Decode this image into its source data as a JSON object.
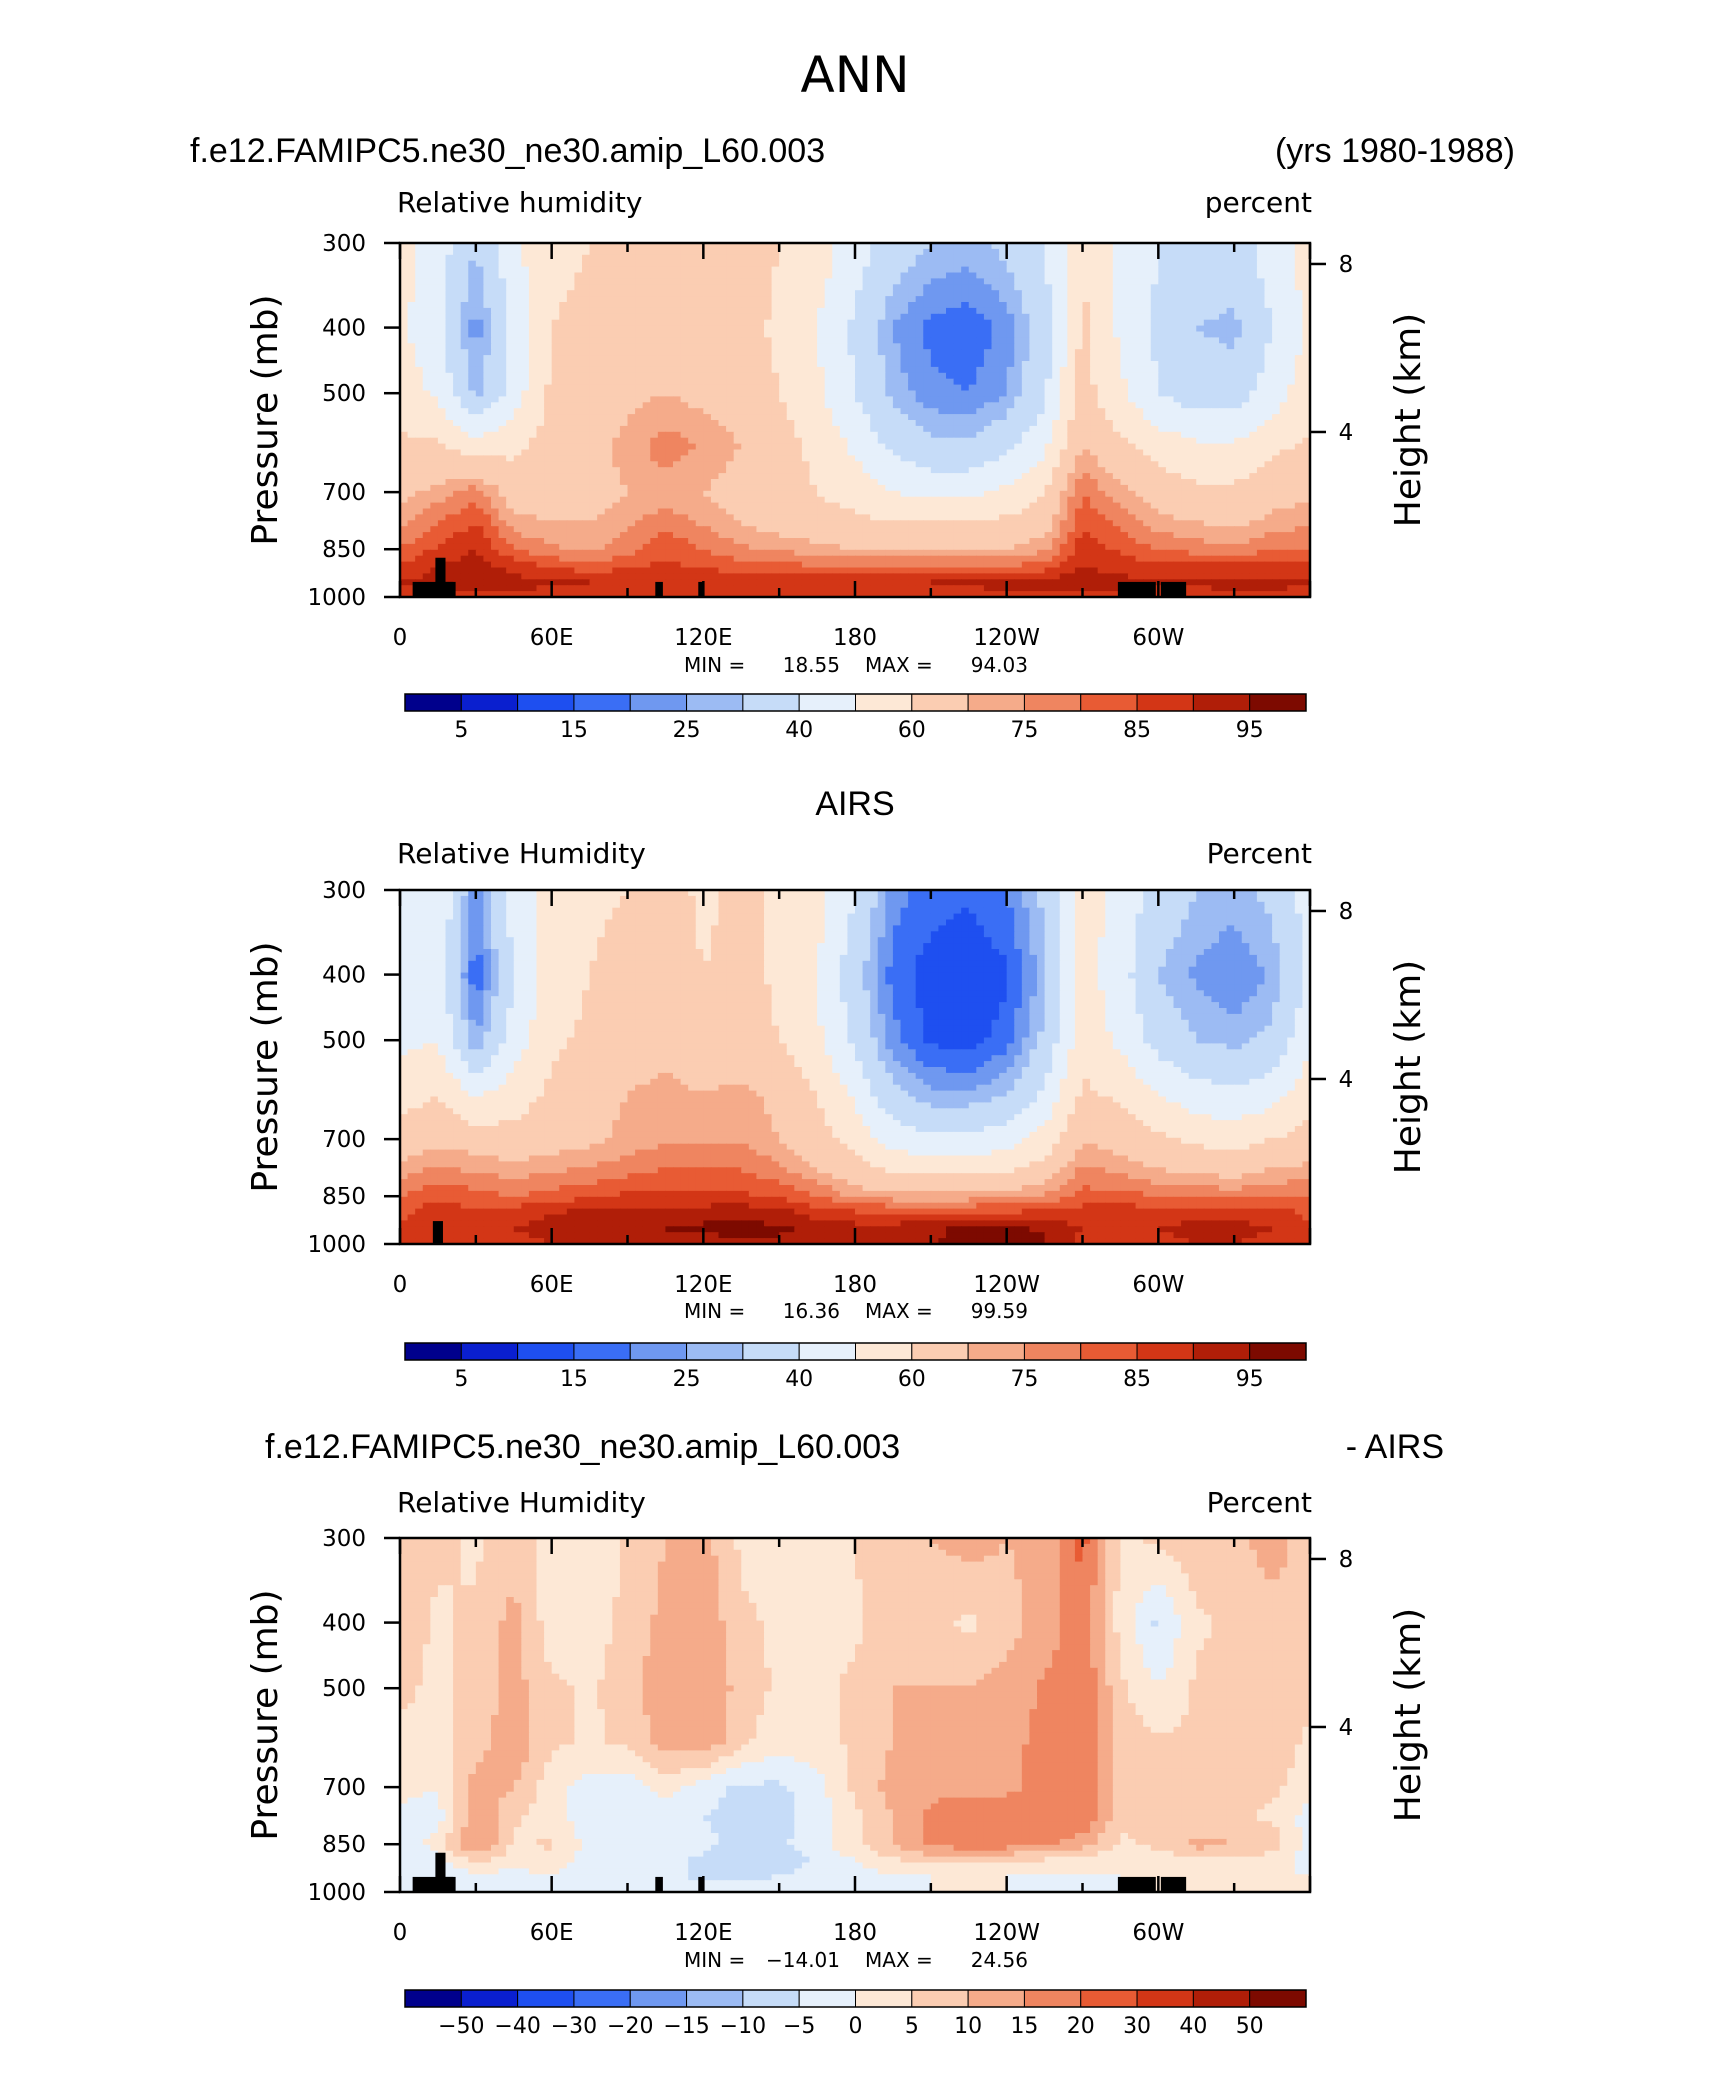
{
  "figure": {
    "title": "ANN"
  },
  "colors": {
    "rh_levels": [
      "#00008c",
      "#0a1fcf",
      "#1e4ff0",
      "#3a6ef5",
      "#6f98f0",
      "#9cbbf3",
      "#c6dcf8",
      "#e6f0fb",
      "#fde8d6",
      "#fbcdb2",
      "#f5ab8a",
      "#ef8560",
      "#e85b34",
      "#d33616",
      "#b01e08",
      "#7d0a00"
    ],
    "diff_levels": [
      "#00008c",
      "#0a1fcf",
      "#1e4ff0",
      "#3a6ef5",
      "#6f98f0",
      "#9cbbf3",
      "#c6dcf8",
      "#e6f0fb",
      "#fde8d6",
      "#fbcdb2",
      "#f5ab8a",
      "#ef8560",
      "#e85b34",
      "#d33616",
      "#b01e08",
      "#7d0a00"
    ],
    "topography": "#000000"
  },
  "chart_data": [
    {
      "type": "heatmap",
      "title_left": "f.e12.FAMIPC5.ne30_ne30.amip_L60.003",
      "title_right": "(yrs 1980-1988)",
      "left_string": "Relative humidity",
      "right_string": "percent",
      "ylabel": "Pressure (mb)",
      "ylabel_right": "Height (km)",
      "y_ticks": [
        "300",
        "400",
        "500",
        "700",
        "850",
        "1000"
      ],
      "y_ticks_right": [
        "8",
        "4"
      ],
      "x_ticks": [
        "0",
        "60E",
        "120E",
        "180",
        "120W",
        "60W"
      ],
      "min_label": "MIN =",
      "min_value": "18.55",
      "max_label": "MAX =",
      "max_value": "94.03",
      "colorbar_labels": [
        "5",
        "15",
        "25",
        "40",
        "60",
        "75",
        "85",
        "95"
      ],
      "field": {
        "lon": [
          0,
          15,
          30,
          45,
          60,
          75,
          90,
          105,
          120,
          135,
          150,
          165,
          180,
          195,
          210,
          225,
          240,
          255,
          270,
          285,
          300,
          315,
          330,
          345,
          360
        ],
        "p": [
          300,
          400,
          500,
          600,
          700,
          775,
          850,
          900,
          950,
          1000
        ],
        "values": [
          [
            55,
            45,
            30,
            48,
            58,
            60,
            62,
            68,
            66,
            64,
            60,
            55,
            45,
            35,
            30,
            28,
            32,
            40,
            60,
            48,
            40,
            38,
            35,
            45,
            55
          ],
          [
            52,
            42,
            22,
            42,
            60,
            62,
            65,
            70,
            68,
            64,
            58,
            50,
            38,
            25,
            18,
            16,
            22,
            35,
            62,
            48,
            38,
            30,
            28,
            40,
            52
          ],
          [
            56,
            48,
            28,
            45,
            62,
            65,
            68,
            70,
            68,
            66,
            60,
            52,
            40,
            28,
            22,
            20,
            25,
            38,
            64,
            52,
            40,
            35,
            35,
            45,
            56
          ],
          [
            62,
            62,
            55,
            58,
            64,
            68,
            72,
            78,
            74,
            70,
            64,
            58,
            48,
            38,
            32,
            32,
            38,
            48,
            70,
            62,
            56,
            52,
            52,
            58,
            62
          ],
          [
            68,
            72,
            78,
            66,
            64,
            66,
            70,
            72,
            70,
            66,
            62,
            60,
            56,
            50,
            48,
            48,
            52,
            60,
            80,
            72,
            66,
            62,
            62,
            66,
            68
          ],
          [
            74,
            80,
            85,
            72,
            70,
            70,
            74,
            78,
            74,
            70,
            66,
            64,
            62,
            60,
            60,
            60,
            62,
            66,
            84,
            78,
            72,
            70,
            68,
            72,
            74
          ],
          [
            80,
            86,
            90,
            80,
            76,
            74,
            78,
            84,
            80,
            76,
            74,
            72,
            70,
            70,
            70,
            70,
            70,
            74,
            88,
            84,
            80,
            78,
            76,
            80,
            80
          ],
          [
            86,
            90,
            92,
            88,
            84,
            82,
            84,
            86,
            84,
            82,
            82,
            80,
            80,
            80,
            80,
            80,
            80,
            82,
            90,
            88,
            86,
            86,
            86,
            86,
            86
          ],
          [
            90,
            92,
            93,
            92,
            91,
            90,
            90,
            90,
            90,
            90,
            90,
            90,
            90,
            90,
            90,
            91,
            92,
            92,
            93,
            92,
            90,
            91,
            92,
            92,
            90
          ],
          [
            88,
            88,
            88,
            88,
            88,
            88,
            88,
            88,
            88,
            88,
            88,
            88,
            88,
            88,
            88,
            88,
            88,
            88,
            88,
            88,
            88,
            88,
            88,
            88,
            88
          ]
        ]
      },
      "topography": [
        {
          "lon0": 5,
          "lon1": 22,
          "p": 950
        },
        {
          "lon0": 14,
          "lon1": 18,
          "p": 875
        },
        {
          "lon0": 18,
          "lon1": 21,
          "p": 950
        },
        {
          "lon0": 101,
          "lon1": 104,
          "p": 950
        },
        {
          "lon0": 118,
          "lon1": 120,
          "p": 950
        },
        {
          "lon0": 284,
          "lon1": 299,
          "p": 950
        },
        {
          "lon0": 301,
          "lon1": 311,
          "p": 950
        }
      ]
    },
    {
      "type": "heatmap",
      "title_center": "AIRS",
      "left_string": "Relative Humidity",
      "right_string": "Percent",
      "ylabel": "Pressure (mb)",
      "ylabel_right": "Height (km)",
      "y_ticks": [
        "300",
        "400",
        "500",
        "700",
        "850",
        "1000"
      ],
      "y_ticks_right": [
        "8",
        "4"
      ],
      "x_ticks": [
        "0",
        "60E",
        "120E",
        "180",
        "120W",
        "60W"
      ],
      "min_label": "MIN =",
      "min_value": "16.36",
      "max_label": "MAX =",
      "max_value": "99.59",
      "colorbar_labels": [
        "5",
        "15",
        "25",
        "40",
        "60",
        "75",
        "85",
        "95"
      ],
      "field": {
        "lon": [
          0,
          15,
          30,
          45,
          60,
          75,
          90,
          105,
          120,
          135,
          150,
          165,
          180,
          195,
          210,
          225,
          240,
          255,
          270,
          285,
          300,
          315,
          330,
          345,
          360
        ],
        "p": [
          300,
          400,
          500,
          600,
          700,
          775,
          850,
          900,
          950,
          1000
        ],
        "values": [
          [
            45,
            50,
            22,
            45,
            55,
            58,
            60,
            64,
            58,
            62,
            58,
            54,
            40,
            22,
            18,
            16,
            20,
            32,
            55,
            46,
            36,
            30,
            28,
            32,
            45
          ],
          [
            42,
            45,
            16,
            40,
            55,
            60,
            64,
            68,
            60,
            64,
            58,
            50,
            34,
            18,
            12,
            10,
            14,
            28,
            55,
            44,
            30,
            24,
            20,
            26,
            42
          ],
          [
            48,
            50,
            25,
            45,
            58,
            62,
            65,
            68,
            62,
            64,
            60,
            52,
            38,
            22,
            14,
            12,
            18,
            32,
            56,
            48,
            36,
            30,
            28,
            32,
            48
          ],
          [
            56,
            60,
            48,
            55,
            62,
            66,
            70,
            72,
            70,
            72,
            68,
            60,
            48,
            32,
            26,
            26,
            30,
            42,
            62,
            58,
            50,
            44,
            42,
            46,
            56
          ],
          [
            64,
            68,
            66,
            64,
            66,
            68,
            72,
            74,
            74,
            74,
            70,
            64,
            56,
            46,
            42,
            42,
            46,
            54,
            70,
            66,
            62,
            58,
            56,
            60,
            64
          ],
          [
            72,
            76,
            74,
            72,
            74,
            76,
            78,
            80,
            80,
            80,
            76,
            70,
            64,
            58,
            56,
            56,
            58,
            64,
            76,
            74,
            70,
            68,
            66,
            70,
            72
          ],
          [
            80,
            84,
            82,
            80,
            82,
            84,
            86,
            86,
            86,
            86,
            84,
            80,
            74,
            72,
            72,
            72,
            74,
            76,
            82,
            82,
            80,
            80,
            78,
            80,
            80
          ],
          [
            84,
            88,
            86,
            88,
            90,
            92,
            92,
            92,
            93,
            94,
            92,
            88,
            86,
            86,
            86,
            86,
            86,
            86,
            88,
            88,
            88,
            88,
            88,
            88,
            84
          ],
          [
            86,
            88,
            88,
            90,
            92,
            94,
            95,
            95,
            96,
            97,
            96,
            94,
            92,
            92,
            94,
            96,
            96,
            94,
            90,
            90,
            90,
            92,
            92,
            90,
            86
          ],
          [
            86,
            86,
            86,
            88,
            90,
            92,
            92,
            92,
            92,
            94,
            94,
            92,
            92,
            92,
            94,
            98,
            99,
            96,
            88,
            88,
            88,
            90,
            90,
            88,
            86
          ]
        ]
      },
      "topography": [
        {
          "lon0": 13,
          "lon1": 17,
          "p": 925
        }
      ]
    },
    {
      "type": "heatmap",
      "title_left": "f.e12.FAMIPC5.ne30_ne30.amip_L60.003",
      "title_right": "- AIRS",
      "left_string": "Relative Humidity",
      "right_string": "Percent",
      "ylabel": "Pressure (mb)",
      "ylabel_right": "Height (km)",
      "y_ticks": [
        "300",
        "400",
        "500",
        "700",
        "850",
        "1000"
      ],
      "y_ticks_right": [
        "8",
        "4"
      ],
      "x_ticks": [
        "0",
        "60E",
        "120E",
        "180",
        "120W",
        "60W"
      ],
      "min_label": "MIN =",
      "min_value": "−14.01",
      "max_label": "MAX =",
      "max_value": "24.56",
      "colorbar_labels": [
        "−50",
        "−40",
        "−30",
        "−20",
        "−15",
        "−10",
        "−5",
        "0",
        "5",
        "10",
        "15",
        "20",
        "30",
        "40",
        "50"
      ],
      "field": {
        "lon": [
          0,
          15,
          30,
          45,
          60,
          75,
          90,
          105,
          120,
          135,
          150,
          165,
          180,
          195,
          210,
          225,
          240,
          255,
          270,
          285,
          300,
          315,
          330,
          345,
          360
        ],
        "p": [
          300,
          400,
          500,
          600,
          700,
          775,
          850,
          900,
          950,
          1000
        ],
        "values": [
          [
            8,
            6,
            4,
            8,
            3,
            2,
            6,
            10,
            12,
            4,
            3,
            2,
            5,
            10,
            10,
            12,
            10,
            12,
            22,
            4,
            6,
            8,
            9,
            12,
            8
          ],
          [
            8,
            4,
            6,
            12,
            2,
            3,
            6,
            12,
            14,
            6,
            4,
            2,
            4,
            8,
            6,
            4,
            8,
            12,
            18,
            3,
            -6,
            4,
            6,
            8,
            8
          ],
          [
            6,
            4,
            6,
            12,
            6,
            4,
            8,
            14,
            15,
            8,
            4,
            4,
            6,
            10,
            10,
            10,
            12,
            16,
            20,
            6,
            0,
            6,
            8,
            8,
            6
          ],
          [
            4,
            3,
            8,
            14,
            6,
            4,
            6,
            12,
            14,
            6,
            2,
            3,
            6,
            10,
            10,
            12,
            14,
            16,
            18,
            8,
            6,
            6,
            8,
            8,
            4
          ],
          [
            2,
            0,
            12,
            10,
            2,
            -2,
            -3,
            2,
            -3,
            -6,
            -6,
            -2,
            6,
            12,
            14,
            14,
            14,
            16,
            20,
            8,
            8,
            6,
            8,
            6,
            2
          ],
          [
            -2,
            -2,
            14,
            6,
            2,
            -3,
            -5,
            -2,
            -5,
            -7,
            -7,
            -3,
            4,
            10,
            16,
            18,
            18,
            18,
            20,
            6,
            6,
            6,
            6,
            4,
            -2
          ],
          [
            -3,
            2,
            16,
            4,
            6,
            -2,
            -4,
            -2,
            -4,
            -6,
            -6,
            -2,
            4,
            10,
            16,
            18,
            18,
            16,
            12,
            4,
            6,
            12,
            10,
            8,
            -3
          ],
          [
            -2,
            -2,
            6,
            2,
            2,
            -2,
            -5,
            -4,
            -6,
            -8,
            -8,
            -4,
            0,
            4,
            6,
            6,
            4,
            4,
            2,
            2,
            2,
            4,
            4,
            2,
            -2
          ],
          [
            0,
            -2,
            -2,
            -2,
            0,
            -2,
            -4,
            -4,
            -6,
            -6,
            -5,
            -3,
            -2,
            -1,
            0,
            0,
            0,
            -1,
            -1,
            0,
            0,
            0,
            0,
            0,
            0
          ],
          [
            0,
            0,
            0,
            0,
            0,
            0,
            0,
            0,
            0,
            0,
            0,
            0,
            0,
            0,
            0,
            0,
            0,
            0,
            0,
            0,
            0,
            0,
            0,
            0,
            0
          ]
        ]
      },
      "topography": [
        {
          "lon0": 5,
          "lon1": 22,
          "p": 950
        },
        {
          "lon0": 14,
          "lon1": 18,
          "p": 875
        },
        {
          "lon0": 18,
          "lon1": 21,
          "p": 950
        },
        {
          "lon0": 101,
          "lon1": 104,
          "p": 950
        },
        {
          "lon0": 118,
          "lon1": 120,
          "p": 950
        },
        {
          "lon0": 284,
          "lon1": 299,
          "p": 950
        },
        {
          "lon0": 301,
          "lon1": 311,
          "p": 950
        }
      ]
    }
  ]
}
